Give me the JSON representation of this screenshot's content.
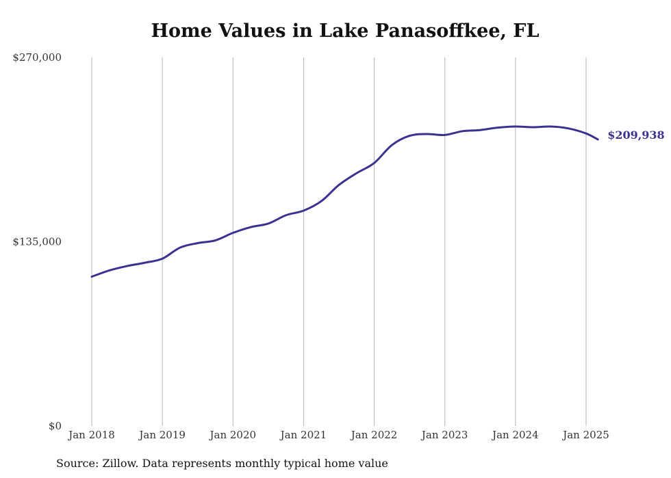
{
  "chart_data": {
    "type": "line",
    "title": "Home Values in Lake Panasoffkee, FL",
    "xlabel": "",
    "ylabel": "",
    "ylim": [
      0,
      270000
    ],
    "yticks": [
      "$270,000",
      "$135,000",
      "$0"
    ],
    "ytick_values": [
      270000,
      135000,
      0
    ],
    "xticks": [
      "Jan 2018",
      "Jan 2019",
      "Jan 2020",
      "Jan 2021",
      "Jan 2022",
      "Jan 2023",
      "Jan 2024",
      "Jan 2025"
    ],
    "xtick_values": [
      "2018-01",
      "2019-01",
      "2020-01",
      "2021-01",
      "2022-01",
      "2023-01",
      "2024-01",
      "2025-01"
    ],
    "grid": "vertical",
    "line_color": "#3b3191",
    "end_label": "$209,938",
    "series": [
      {
        "x": [
          "2018-01",
          "2018-04",
          "2018-07",
          "2018-10",
          "2019-01",
          "2019-04",
          "2019-07",
          "2019-10",
          "2020-01",
          "2020-04",
          "2020-07",
          "2020-10",
          "2021-01",
          "2021-04",
          "2021-07",
          "2021-10",
          "2022-01",
          "2022-04",
          "2022-07",
          "2022-10",
          "2023-01",
          "2023-04",
          "2023-07",
          "2023-10",
          "2024-01",
          "2024-04",
          "2024-07",
          "2024-10",
          "2025-01",
          "2025-03"
        ],
        "values": [
          109400,
          114000,
          117200,
          119600,
          122600,
          130700,
          134000,
          136000,
          141500,
          145700,
          148300,
          154400,
          157800,
          164700,
          176600,
          185200,
          192700,
          205800,
          212600,
          213900,
          213200,
          216000,
          216800,
          218600,
          219400,
          218900,
          219400,
          218000,
          214300,
          209938
        ]
      }
    ]
  },
  "source_note": "Source: Zillow. Data represents monthly typical home value"
}
